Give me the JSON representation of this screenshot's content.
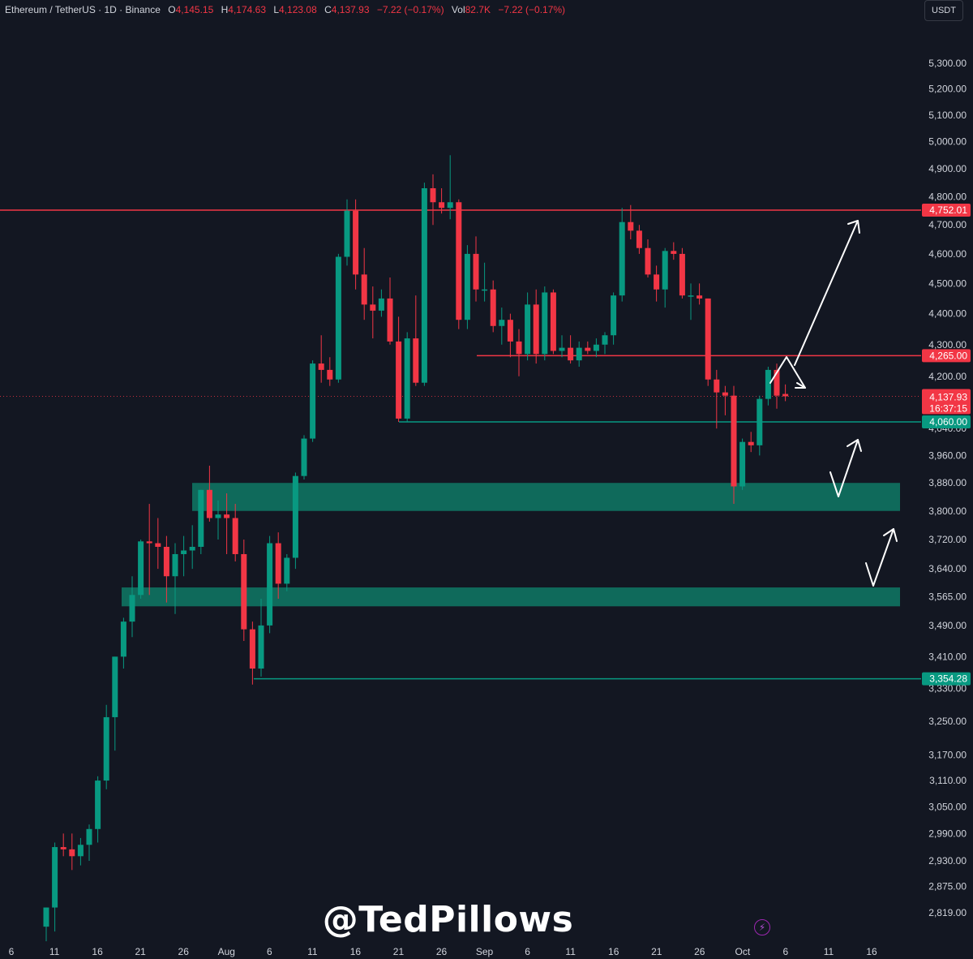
{
  "header": {
    "symbol": "Ethereum / TetherUS · 1D · Binance",
    "open_label": "O",
    "open": "4,145.15",
    "high_label": "H",
    "high": "4,174.63",
    "low_label": "L",
    "low": "4,123.08",
    "close_label": "C",
    "close": "4,137.93",
    "change": "−7.22 (−0.17%)",
    "vol_label": "Vol",
    "volume": "82.7K",
    "vol_change": "−7.22 (−0.17%)"
  },
  "currency": "USDT",
  "watermark": "@TedPillows",
  "icons": {
    "bolt": "lightning-bolt-icon"
  },
  "colors": {
    "background": "#131722",
    "up": "#089981",
    "down": "#f23645",
    "zone": "#0f6f5f",
    "resistance": "#f23645",
    "support": "#089981"
  },
  "chart_data": {
    "type": "candlestick",
    "symbol": "Ethereum / TetherUS",
    "timeframe": "1D",
    "exchange": "Binance",
    "y_scale": "log",
    "ylim": [
      2750,
      5450
    ],
    "y_ticks": [
      "5,300.00",
      "5,200.00",
      "5,100.00",
      "5,000.00",
      "4,900.00",
      "4,800.00",
      "4,700.00",
      "4,600.00",
      "4,500.00",
      "4,400.00",
      "4,300.00",
      "4,200.00",
      "4,040.00",
      "3,960.00",
      "3,880.00",
      "3,800.00",
      "3,720.00",
      "3,640.00",
      "3,565.00",
      "3,490.00",
      "3,410.00",
      "3,330.00",
      "3,250.00",
      "3,170.00",
      "3,110.00",
      "3,050.00",
      "2,990.00",
      "2,930.00",
      "2,875.00",
      "2,819.00"
    ],
    "x_ticks": [
      "6",
      "11",
      "16",
      "21",
      "26",
      "Aug",
      "6",
      "11",
      "16",
      "21",
      "26",
      "Sep",
      "6",
      "11",
      "16",
      "21",
      "26",
      "Oct",
      "6",
      "11",
      "16"
    ],
    "candles": [
      {
        "o": 2790,
        "h": 2830,
        "l": 2760,
        "c": 2830
      },
      {
        "o": 2830,
        "h": 2970,
        "l": 2780,
        "c": 2960
      },
      {
        "o": 2960,
        "h": 2990,
        "l": 2940,
        "c": 2955
      },
      {
        "o": 2955,
        "h": 2990,
        "l": 2910,
        "c": 2940
      },
      {
        "o": 2940,
        "h": 2980,
        "l": 2920,
        "c": 2965
      },
      {
        "o": 2965,
        "h": 3010,
        "l": 2930,
        "c": 3000
      },
      {
        "o": 3000,
        "h": 3120,
        "l": 2970,
        "c": 3110
      },
      {
        "o": 3110,
        "h": 3290,
        "l": 3090,
        "c": 3260
      },
      {
        "o": 3260,
        "h": 3410,
        "l": 3180,
        "c": 3410
      },
      {
        "o": 3410,
        "h": 3510,
        "l": 3380,
        "c": 3500
      },
      {
        "o": 3500,
        "h": 3620,
        "l": 3460,
        "c": 3570
      },
      {
        "o": 3570,
        "h": 3720,
        "l": 3560,
        "c": 3715
      },
      {
        "o": 3715,
        "h": 3820,
        "l": 3570,
        "c": 3710
      },
      {
        "o": 3710,
        "h": 3780,
        "l": 3640,
        "c": 3700
      },
      {
        "o": 3700,
        "h": 3730,
        "l": 3550,
        "c": 3620
      },
      {
        "o": 3620,
        "h": 3710,
        "l": 3520,
        "c": 3680
      },
      {
        "o": 3680,
        "h": 3730,
        "l": 3620,
        "c": 3690
      },
      {
        "o": 3690,
        "h": 3760,
        "l": 3640,
        "c": 3700
      },
      {
        "o": 3700,
        "h": 3860,
        "l": 3680,
        "c": 3860
      },
      {
        "o": 3860,
        "h": 3930,
        "l": 3770,
        "c": 3780
      },
      {
        "o": 3780,
        "h": 3830,
        "l": 3720,
        "c": 3790
      },
      {
        "o": 3790,
        "h": 3850,
        "l": 3680,
        "c": 3780
      },
      {
        "o": 3780,
        "h": 3820,
        "l": 3660,
        "c": 3680
      },
      {
        "o": 3680,
        "h": 3720,
        "l": 3450,
        "c": 3480
      },
      {
        "o": 3480,
        "h": 3500,
        "l": 3340,
        "c": 3380
      },
      {
        "o": 3380,
        "h": 3560,
        "l": 3360,
        "c": 3490
      },
      {
        "o": 3490,
        "h": 3730,
        "l": 3470,
        "c": 3710
      },
      {
        "o": 3710,
        "h": 3740,
        "l": 3560,
        "c": 3600
      },
      {
        "o": 3600,
        "h": 3680,
        "l": 3580,
        "c": 3670
      },
      {
        "o": 3670,
        "h": 3910,
        "l": 3640,
        "c": 3900
      },
      {
        "o": 3900,
        "h": 4020,
        "l": 3890,
        "c": 4010
      },
      {
        "o": 4010,
        "h": 4250,
        "l": 4000,
        "c": 4240
      },
      {
        "o": 4240,
        "h": 4330,
        "l": 4180,
        "c": 4220
      },
      {
        "o": 4220,
        "h": 4260,
        "l": 4170,
        "c": 4190
      },
      {
        "o": 4190,
        "h": 4600,
        "l": 4180,
        "c": 4590
      },
      {
        "o": 4590,
        "h": 4790,
        "l": 4560,
        "c": 4750
      },
      {
        "o": 4750,
        "h": 4790,
        "l": 4480,
        "c": 4530
      },
      {
        "o": 4530,
        "h": 4620,
        "l": 4380,
        "c": 4430
      },
      {
        "o": 4430,
        "h": 4490,
        "l": 4320,
        "c": 4410
      },
      {
        "o": 4410,
        "h": 4480,
        "l": 4390,
        "c": 4450
      },
      {
        "o": 4450,
        "h": 4520,
        "l": 4300,
        "c": 4310
      },
      {
        "o": 4310,
        "h": 4390,
        "l": 4060,
        "c": 4070
      },
      {
        "o": 4070,
        "h": 4340,
        "l": 4060,
        "c": 4320
      },
      {
        "o": 4320,
        "h": 4460,
        "l": 4170,
        "c": 4180
      },
      {
        "o": 4180,
        "h": 4850,
        "l": 4170,
        "c": 4830
      },
      {
        "o": 4830,
        "h": 4880,
        "l": 4700,
        "c": 4780
      },
      {
        "o": 4780,
        "h": 4830,
        "l": 4740,
        "c": 4760
      },
      {
        "o": 4760,
        "h": 4950,
        "l": 4720,
        "c": 4780
      },
      {
        "o": 4780,
        "h": 4790,
        "l": 4350,
        "c": 4380
      },
      {
        "o": 4380,
        "h": 4630,
        "l": 4350,
        "c": 4600
      },
      {
        "o": 4600,
        "h": 4660,
        "l": 4440,
        "c": 4480
      },
      {
        "o": 4480,
        "h": 4570,
        "l": 4440,
        "c": 4480
      },
      {
        "o": 4480,
        "h": 4510,
        "l": 4340,
        "c": 4360
      },
      {
        "o": 4360,
        "h": 4420,
        "l": 4300,
        "c": 4380
      },
      {
        "o": 4380,
        "h": 4400,
        "l": 4260,
        "c": 4310
      },
      {
        "o": 4310,
        "h": 4350,
        "l": 4200,
        "c": 4270
      },
      {
        "o": 4270,
        "h": 4470,
        "l": 4250,
        "c": 4430
      },
      {
        "o": 4430,
        "h": 4480,
        "l": 4240,
        "c": 4270
      },
      {
        "o": 4270,
        "h": 4490,
        "l": 4250,
        "c": 4470
      },
      {
        "o": 4470,
        "h": 4480,
        "l": 4270,
        "c": 4280
      },
      {
        "o": 4280,
        "h": 4330,
        "l": 4260,
        "c": 4290
      },
      {
        "o": 4290,
        "h": 4330,
        "l": 4240,
        "c": 4250
      },
      {
        "o": 4250,
        "h": 4310,
        "l": 4230,
        "c": 4290
      },
      {
        "o": 4290,
        "h": 4310,
        "l": 4270,
        "c": 4280
      },
      {
        "o": 4280,
        "h": 4320,
        "l": 4260,
        "c": 4300
      },
      {
        "o": 4300,
        "h": 4340,
        "l": 4270,
        "c": 4330
      },
      {
        "o": 4330,
        "h": 4470,
        "l": 4300,
        "c": 4460
      },
      {
        "o": 4460,
        "h": 4760,
        "l": 4440,
        "c": 4710
      },
      {
        "o": 4710,
        "h": 4770,
        "l": 4650,
        "c": 4680
      },
      {
        "o": 4680,
        "h": 4700,
        "l": 4600,
        "c": 4620
      },
      {
        "o": 4620,
        "h": 4650,
        "l": 4520,
        "c": 4530
      },
      {
        "o": 4530,
        "h": 4560,
        "l": 4440,
        "c": 4480
      },
      {
        "o": 4480,
        "h": 4620,
        "l": 4420,
        "c": 4610
      },
      {
        "o": 4610,
        "h": 4640,
        "l": 4580,
        "c": 4600
      },
      {
        "o": 4600,
        "h": 4620,
        "l": 4450,
        "c": 4460
      },
      {
        "o": 4460,
        "h": 4500,
        "l": 4380,
        "c": 4460
      },
      {
        "o": 4460,
        "h": 4500,
        "l": 4430,
        "c": 4450
      },
      {
        "o": 4450,
        "h": 4450,
        "l": 4170,
        "c": 4190
      },
      {
        "o": 4190,
        "h": 4220,
        "l": 4040,
        "c": 4150
      },
      {
        "o": 4150,
        "h": 4170,
        "l": 4080,
        "c": 4140
      },
      {
        "o": 4140,
        "h": 4170,
        "l": 3820,
        "c": 3870
      },
      {
        "o": 3870,
        "h": 4010,
        "l": 3860,
        "c": 4000
      },
      {
        "o": 4000,
        "h": 4030,
        "l": 3970,
        "c": 3990
      },
      {
        "o": 3990,
        "h": 4140,
        "l": 3960,
        "c": 4130
      },
      {
        "o": 4130,
        "h": 4230,
        "l": 4110,
        "c": 4220
      },
      {
        "o": 4220,
        "h": 4240,
        "l": 4100,
        "c": 4140
      },
      {
        "o": 4145.15,
        "h": 4174.63,
        "l": 4123.08,
        "c": 4137.93
      }
    ],
    "levels": [
      {
        "price": 4752.01,
        "label": "4,752.01",
        "kind": "resistance"
      },
      {
        "price": 4265.0,
        "label": "4,265.00",
        "kind": "resistance"
      },
      {
        "price": 4060.0,
        "label": "4,060.00",
        "kind": "support"
      },
      {
        "price": 3354.28,
        "label": "3,354.28",
        "kind": "support"
      }
    ],
    "current_price": {
      "price": 4137.93,
      "label": "4,137.93",
      "countdown": "16:37:15"
    },
    "zones": [
      {
        "top": 3880,
        "bottom": 3800
      },
      {
        "top": 3590,
        "bottom": 3540
      }
    ]
  }
}
